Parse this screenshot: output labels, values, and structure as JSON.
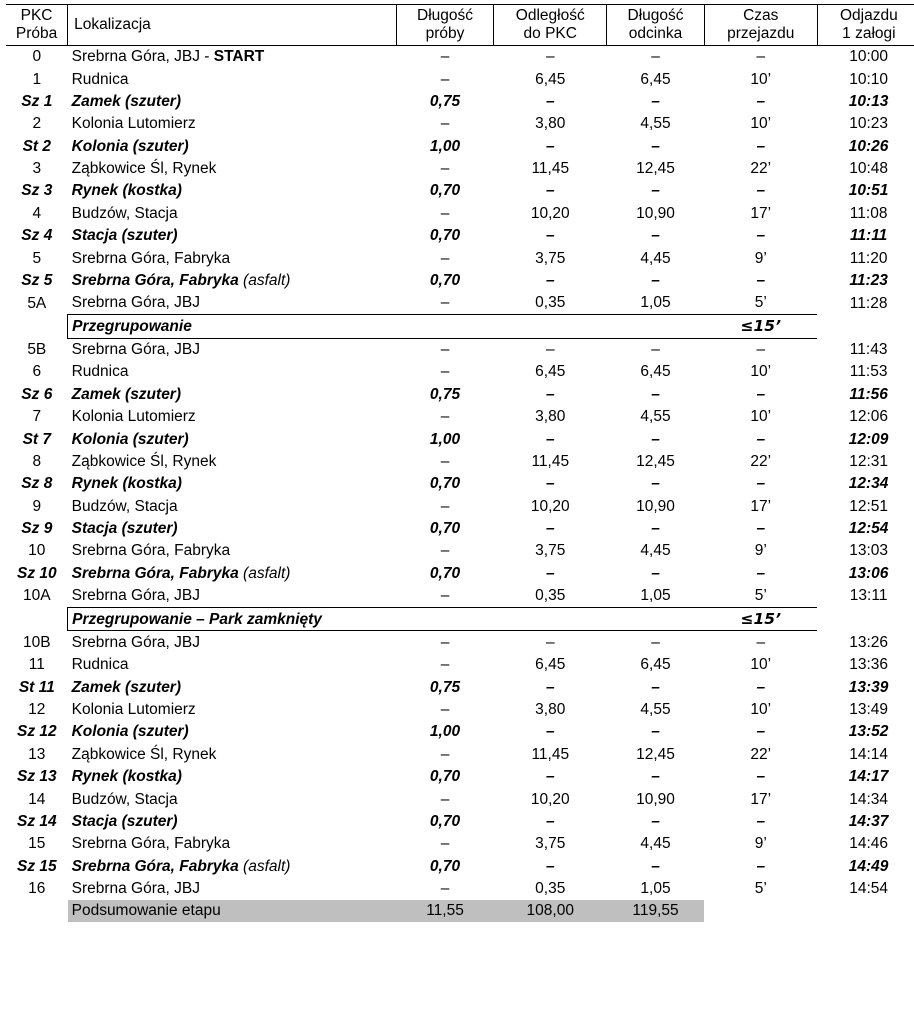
{
  "dash": "–",
  "headers": {
    "pkc": "PKC\nPróba",
    "loc": "Lokalizacja",
    "len": "Długość\npróby",
    "dist": "Odległość\ndo PKC",
    "sec": "Długość\nodcinka",
    "trav": "Czas\nprzejazdu",
    "dep": "Odjazdu\n1 załogi"
  },
  "startLabel": "START",
  "regroup1": {
    "label": "Przegrupowanie",
    "time": "≤15’"
  },
  "regroup2": {
    "label": "Przegrupowanie – Park zamknięty",
    "time": "≤15’"
  },
  "summary": {
    "label": "Podsumowanie etapu",
    "len": "11,55",
    "dist": "108,00",
    "sec": "119,55"
  },
  "rows": [
    {
      "pkc": "0",
      "loc": "Srebrna Góra, JBJ - ",
      "len": "–",
      "dist": "–",
      "sec": "–",
      "trav": "–",
      "dep": "10:00",
      "start": true
    },
    {
      "pkc": "1",
      "loc": "Rudnica",
      "len": "–",
      "dist": "6,45",
      "sec": "6,45",
      "trav": "10’",
      "dep": "10:10"
    },
    {
      "pkc": "Sz 1",
      "loc": "Zamek (szuter)",
      "len": "0,75",
      "dist": "–",
      "sec": "–",
      "trav": "–",
      "dep": "10:13",
      "bi": true
    },
    {
      "pkc": "2",
      "loc": "Kolonia Lutomierz",
      "len": "–",
      "dist": "3,80",
      "sec": "4,55",
      "trav": "10’",
      "dep": "10:23"
    },
    {
      "pkc": "St 2",
      "loc": "Kolonia (szuter)",
      "len": "1,00",
      "dist": "–",
      "sec": "–",
      "trav": "–",
      "dep": "10:26",
      "bi": true
    },
    {
      "pkc": "3",
      "loc": "Ząbkowice Śl, Rynek",
      "len": "–",
      "dist": "11,45",
      "sec": "12,45",
      "trav": "22’",
      "dep": "10:48"
    },
    {
      "pkc": "Sz 3",
      "loc": "Rynek (kostka)",
      "len": "0,70",
      "dist": "–",
      "sec": "–",
      "trav": "–",
      "dep": "10:51",
      "bi": true
    },
    {
      "pkc": "4",
      "loc": "Budzów, Stacja",
      "len": "–",
      "dist": "10,20",
      "sec": "10,90",
      "trav": "17’",
      "dep": "11:08"
    },
    {
      "pkc": "Sz 4",
      "loc": "Stacja (szuter)",
      "len": "0,70",
      "dist": "–",
      "sec": "–",
      "trav": "–",
      "dep": "11:11",
      "bi": true
    },
    {
      "pkc": "5",
      "loc": "Srebrna Góra, Fabryka",
      "len": "–",
      "dist": "3,75",
      "sec": "4,45",
      "trav": "9’",
      "dep": "11:20"
    },
    {
      "pkc": "Sz 5",
      "loc": "Srebrna Góra, Fabryka",
      "surf": " (asfalt)",
      "len": "0,70",
      "dist": "–",
      "sec": "–",
      "trav": "–",
      "dep": "11:23",
      "bi": true,
      "surfNormal": true
    },
    {
      "pkc": "5A",
      "loc": "Srebrna Góra, JBJ",
      "len": "–",
      "dist": "0,35",
      "sec": "1,05",
      "trav": "5’",
      "dep": "11:28"
    },
    {
      "sep": 1
    },
    {
      "pkc": "5B",
      "loc": "Srebrna Góra, JBJ",
      "len": "–",
      "dist": "–",
      "sec": "–",
      "trav": "–",
      "dep": "11:43"
    },
    {
      "pkc": "6",
      "loc": "Rudnica",
      "len": "–",
      "dist": "6,45",
      "sec": "6,45",
      "trav": "10’",
      "dep": "11:53"
    },
    {
      "pkc": "Sz 6",
      "loc": "Zamek (szuter)",
      "len": "0,75",
      "dist": "–",
      "sec": "–",
      "trav": "–",
      "dep": "11:56",
      "bi": true
    },
    {
      "pkc": "7",
      "loc": "Kolonia Lutomierz",
      "len": "–",
      "dist": "3,80",
      "sec": "4,55",
      "trav": "10’",
      "dep": "12:06"
    },
    {
      "pkc": "St 7",
      "loc": "Kolonia (szuter)",
      "len": "1,00",
      "dist": "–",
      "sec": "–",
      "trav": "–",
      "dep": "12:09",
      "bi": true
    },
    {
      "pkc": "8",
      "loc": "Ząbkowice Śl, Rynek",
      "len": "–",
      "dist": "11,45",
      "sec": "12,45",
      "trav": "22’",
      "dep": "12:31"
    },
    {
      "pkc": "Sz 8",
      "loc": "Rynek (kostka)",
      "len": "0,70",
      "dist": "–",
      "sec": "–",
      "trav": "–",
      "dep": "12:34",
      "bi": true
    },
    {
      "pkc": "9",
      "loc": "Budzów, Stacja",
      "len": "–",
      "dist": "10,20",
      "sec": "10,90",
      "trav": "17’",
      "dep": "12:51"
    },
    {
      "pkc": "Sz 9",
      "loc": "Stacja (szuter)",
      "len": "0,70",
      "dist": "–",
      "sec": "–",
      "trav": "–",
      "dep": "12:54",
      "bi": true
    },
    {
      "pkc": "10",
      "loc": "Srebrna Góra, Fabryka",
      "len": "–",
      "dist": "3,75",
      "sec": "4,45",
      "trav": "9’",
      "dep": "13:03"
    },
    {
      "pkc": "Sz 10",
      "loc": "Srebrna Góra, Fabryka",
      "surf": " (asfalt)",
      "len": "0,70",
      "dist": "–",
      "sec": "–",
      "trav": "–",
      "dep": "13:06",
      "bi": true,
      "surfNormal": true
    },
    {
      "pkc": "10A",
      "loc": "Srebrna Góra, JBJ",
      "len": "–",
      "dist": "0,35",
      "sec": "1,05",
      "trav": "5’",
      "dep": "13:11"
    },
    {
      "sep": 2
    },
    {
      "pkc": "10B",
      "loc": "Srebrna Góra, JBJ",
      "len": "–",
      "dist": "–",
      "sec": "–",
      "trav": "–",
      "dep": "13:26"
    },
    {
      "pkc": "11",
      "loc": "Rudnica",
      "len": "–",
      "dist": "6,45",
      "sec": "6,45",
      "trav": "10’",
      "dep": "13:36"
    },
    {
      "pkc": "St 11",
      "loc": "Zamek (szuter)",
      "len": "0,75",
      "dist": "–",
      "sec": "–",
      "trav": "–",
      "dep": "13:39",
      "bi": true
    },
    {
      "pkc": "12",
      "loc": "Kolonia Lutomierz",
      "len": "–",
      "dist": "3,80",
      "sec": "4,55",
      "trav": "10’",
      "dep": "13:49"
    },
    {
      "pkc": "Sz 12",
      "loc": "Kolonia (szuter)",
      "len": "1,00",
      "dist": "–",
      "sec": "–",
      "trav": "–",
      "dep": "13:52",
      "bi": true
    },
    {
      "pkc": "13",
      "loc": "Ząbkowice Śl, Rynek",
      "len": "–",
      "dist": "11,45",
      "sec": "12,45",
      "trav": "22’",
      "dep": "14:14"
    },
    {
      "pkc": "Sz 13",
      "loc": "Rynek (kostka)",
      "len": "0,70",
      "dist": "–",
      "sec": "–",
      "trav": "–",
      "dep": "14:17",
      "bi": true
    },
    {
      "pkc": "14",
      "loc": "Budzów, Stacja",
      "len": "–",
      "dist": "10,20",
      "sec": "10,90",
      "trav": "17’",
      "dep": "14:34"
    },
    {
      "pkc": "Sz 14",
      "loc": "Stacja (szuter)",
      "len": "0,70",
      "dist": "–",
      "sec": "–",
      "trav": "–",
      "dep": "14:37",
      "bi": true
    },
    {
      "pkc": "15",
      "loc": "Srebrna Góra, Fabryka",
      "len": "–",
      "dist": "3,75",
      "sec": "4,45",
      "trav": "9’",
      "dep": "14:46"
    },
    {
      "pkc": "Sz 15",
      "loc": "Srebrna Góra, Fabryka",
      "surf": " (asfalt)",
      "len": "0,70",
      "dist": "–",
      "sec": "–",
      "trav": "–",
      "dep": "14:49",
      "bi": true,
      "surfNormal": true
    },
    {
      "pkc": "16",
      "loc": "Srebrna Góra, JBJ",
      "len": "–",
      "dist": "0,35",
      "sec": "1,05",
      "trav": "5’",
      "dep": "14:54"
    }
  ]
}
